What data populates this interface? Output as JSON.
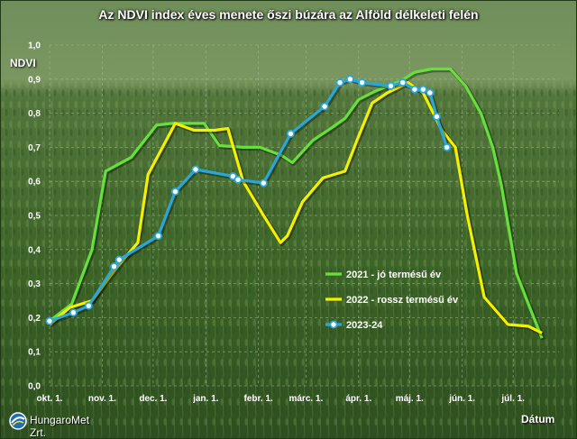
{
  "chart_data": {
    "type": "line",
    "title": "Az NDVI index éves menete őszi búzára az Alföld délkeleti felén",
    "ylabel": "NDVI",
    "xlabel": "Dátum",
    "ylim": [
      0,
      1.0
    ],
    "yticks": [
      "0,0",
      "0,1",
      "0,2",
      "0,3",
      "0,4",
      "0,5",
      "0,6",
      "0,7",
      "0,8",
      "0,9",
      "1,0"
    ],
    "xlim": [
      0,
      300
    ],
    "xticks": [
      {
        "label": "okt. 1.",
        "day": 0
      },
      {
        "label": "nov. 1.",
        "day": 31
      },
      {
        "label": "dec. 1.",
        "day": 61
      },
      {
        "label": "jan. 1.",
        "day": 92
      },
      {
        "label": "febr. 1.",
        "day": 123
      },
      {
        "label": "márc. 1.",
        "day": 151
      },
      {
        "label": "ápr. 1.",
        "day": 182
      },
      {
        "label": "máj. 1.",
        "day": 212
      },
      {
        "label": "jún. 1.",
        "day": 243
      },
      {
        "label": "júl. 1.",
        "day": 273
      }
    ],
    "grid": true,
    "legend_position": "right",
    "series": [
      {
        "name": "2021 - jó termésű év",
        "color": "#66e03a",
        "markers": false,
        "points": [
          [
            0,
            0.19
          ],
          [
            13,
            0.24
          ],
          [
            25,
            0.4
          ],
          [
            33,
            0.63
          ],
          [
            48,
            0.67
          ],
          [
            63,
            0.765
          ],
          [
            72,
            0.77
          ],
          [
            84,
            0.77
          ],
          [
            91,
            0.77
          ],
          [
            100,
            0.705
          ],
          [
            114,
            0.7
          ],
          [
            124,
            0.7
          ],
          [
            137,
            0.675
          ],
          [
            143,
            0.655
          ],
          [
            155,
            0.72
          ],
          [
            167,
            0.76
          ],
          [
            174,
            0.785
          ],
          [
            182,
            0.84
          ],
          [
            192,
            0.865
          ],
          [
            207,
            0.895
          ],
          [
            215,
            0.92
          ],
          [
            225,
            0.93
          ],
          [
            236,
            0.93
          ],
          [
            245,
            0.88
          ],
          [
            254,
            0.8
          ],
          [
            261,
            0.7
          ],
          [
            266,
            0.59
          ],
          [
            275,
            0.33
          ],
          [
            282,
            0.24
          ],
          [
            290,
            0.14
          ]
        ]
      },
      {
        "name": "2022 - rossz termésű év",
        "color": "#f5f000",
        "markers": false,
        "points": [
          [
            0,
            0.18
          ],
          [
            12,
            0.23
          ],
          [
            25,
            0.25
          ],
          [
            40,
            0.35
          ],
          [
            52,
            0.42
          ],
          [
            58,
            0.62
          ],
          [
            74,
            0.77
          ],
          [
            85,
            0.75
          ],
          [
            97,
            0.75
          ],
          [
            105,
            0.755
          ],
          [
            114,
            0.6
          ],
          [
            126,
            0.5
          ],
          [
            136,
            0.42
          ],
          [
            140,
            0.44
          ],
          [
            149,
            0.54
          ],
          [
            161,
            0.61
          ],
          [
            174,
            0.63
          ],
          [
            181,
            0.72
          ],
          [
            190,
            0.83
          ],
          [
            199,
            0.86
          ],
          [
            211,
            0.89
          ],
          [
            220,
            0.86
          ],
          [
            231,
            0.75
          ],
          [
            239,
            0.7
          ],
          [
            246,
            0.5
          ],
          [
            256,
            0.26
          ],
          [
            270,
            0.18
          ],
          [
            282,
            0.175
          ],
          [
            290,
            0.155
          ]
        ]
      },
      {
        "name": "2023-24",
        "color": "#2aa6d8",
        "markers": true,
        "points": [
          [
            0,
            0.19
          ],
          [
            14,
            0.215
          ],
          [
            23,
            0.235
          ],
          [
            38,
            0.35
          ],
          [
            41,
            0.37
          ],
          [
            64,
            0.44
          ],
          [
            74,
            0.57
          ],
          [
            86,
            0.635
          ],
          [
            108,
            0.615
          ],
          [
            111,
            0.605
          ],
          [
            126,
            0.595
          ],
          [
            142,
            0.74
          ],
          [
            162,
            0.82
          ],
          [
            171,
            0.89
          ],
          [
            177,
            0.9
          ],
          [
            184,
            0.89
          ],
          [
            201,
            0.88
          ],
          [
            208,
            0.89
          ],
          [
            215,
            0.87
          ],
          [
            220,
            0.87
          ],
          [
            224,
            0.86
          ],
          [
            228,
            0.79
          ],
          [
            234,
            0.7
          ]
        ]
      }
    ]
  },
  "logo": {
    "text": "HungaroMet Zrt."
  }
}
